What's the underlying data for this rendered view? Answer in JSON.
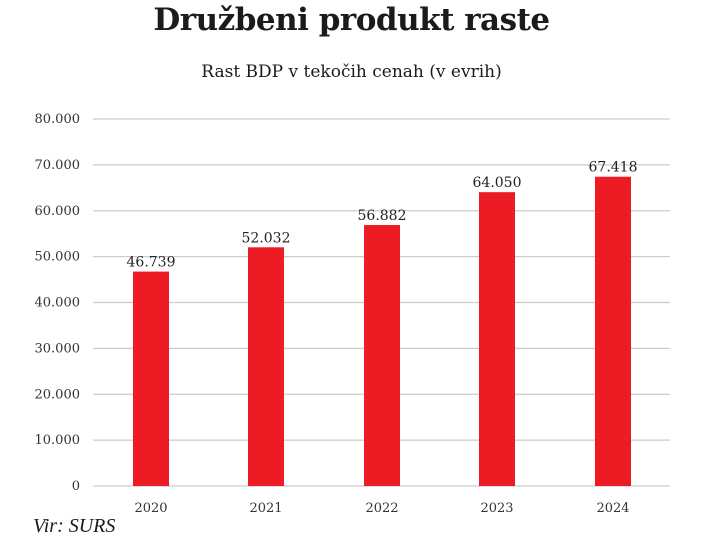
{
  "chart_data": {
    "type": "bar",
    "title": "Družbeni produkt raste",
    "subtitle": "Rast BDP v tekočih cenah (v evrih)",
    "categories": [
      "2020",
      "2021",
      "2022",
      "2023",
      "2024"
    ],
    "values": [
      46739,
      52032,
      56882,
      64050,
      67418
    ],
    "data_labels": [
      "46.739",
      "52.032",
      "56.882",
      "64.050",
      "67.418"
    ],
    "xlabel": "",
    "ylabel": "",
    "ylim": [
      0,
      80000
    ],
    "yticks": [
      0,
      10000,
      20000,
      30000,
      40000,
      50000,
      60000,
      70000,
      80000
    ],
    "ytick_labels": [
      "0",
      "10.000",
      "20.000",
      "30.000",
      "40.000",
      "50.000",
      "60.000",
      "70.000",
      "80.000"
    ],
    "grid": true,
    "legend": "none",
    "bar_color": "#ED1C24",
    "grid_color": "#cccccc",
    "source": "Vir: SURS"
  }
}
